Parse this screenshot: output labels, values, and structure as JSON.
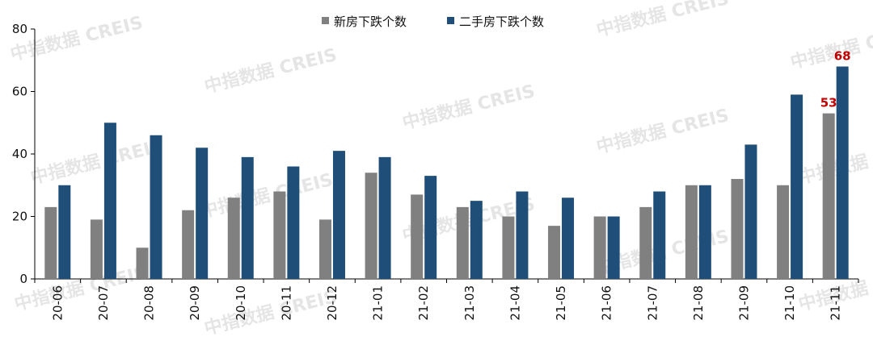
{
  "watermark": "中指数据 CREIS",
  "chart_data": {
    "type": "bar",
    "title": "",
    "xlabel": "",
    "ylabel": "",
    "ylim": [
      0,
      80
    ],
    "yticks": [
      0,
      20,
      40,
      60,
      80
    ],
    "legend_position": "top-center",
    "grid": false,
    "categories": [
      "20-06",
      "20-07",
      "20-08",
      "20-09",
      "20-10",
      "20-11",
      "20-12",
      "21-01",
      "21-02",
      "21-03",
      "21-04",
      "21-05",
      "21-06",
      "21-07",
      "21-08",
      "21-09",
      "21-10",
      "21-11"
    ],
    "series": [
      {
        "name": "新房下跌个数",
        "color": "#808080",
        "values": [
          23,
          19,
          10,
          22,
          26,
          28,
          19,
          34,
          27,
          23,
          20,
          17,
          20,
          23,
          30,
          32,
          30,
          53
        ]
      },
      {
        "name": "二手房下跌个数",
        "color": "#1f4e79",
        "values": [
          30,
          50,
          46,
          42,
          39,
          36,
          41,
          39,
          33,
          25,
          28,
          26,
          20,
          28,
          30,
          43,
          59,
          68
        ]
      }
    ],
    "data_labels": [
      {
        "category": "21-11",
        "series": 0,
        "text": "53"
      },
      {
        "category": "21-11",
        "series": 1,
        "text": "68"
      }
    ]
  }
}
